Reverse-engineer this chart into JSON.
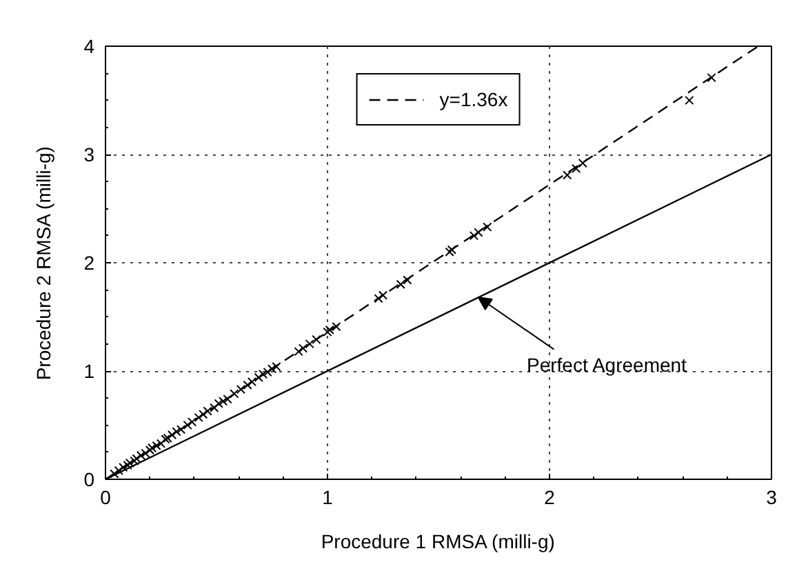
{
  "chart_data": {
    "type": "scatter",
    "xlabel": "Procedure 1 RMSA (milli-g)",
    "ylabel": "Procedure 2 RMSA (milli-g)",
    "xlim": [
      0,
      3
    ],
    "ylim": [
      0,
      4
    ],
    "xticks": [
      0,
      1,
      2,
      3
    ],
    "yticks": [
      0,
      1,
      2,
      3,
      4
    ],
    "grid": true,
    "legend": "top",
    "series": [
      {
        "type": "line",
        "name": "y=1.36x",
        "color": "#000000",
        "line_style": "dashed",
        "x": [
          0,
          2.94
        ],
        "values": [
          0,
          4
        ]
      },
      {
        "type": "line",
        "color": "#000000",
        "line_style": "solid",
        "x": [
          0,
          3
        ],
        "values": [
          0,
          3
        ]
      },
      {
        "color": "#000000",
        "marker": "cross",
        "x": [
          0.04,
          0.06,
          0.08,
          0.1,
          0.11,
          0.13,
          0.14,
          0.16,
          0.18,
          0.2,
          0.21,
          0.23,
          0.25,
          0.27,
          0.28,
          0.3,
          0.32,
          0.34,
          0.37,
          0.39,
          0.42,
          0.44,
          0.46,
          0.49,
          0.51,
          0.53,
          0.55,
          0.58,
          0.61,
          0.64,
          0.66,
          0.69,
          0.71,
          0.73,
          0.75,
          0.77,
          0.87,
          0.89,
          0.92,
          0.95,
          1.0,
          1.01,
          1.04,
          1.23,
          1.25,
          1.33,
          1.36,
          1.55,
          1.56,
          1.66,
          1.68,
          1.72,
          2.08,
          2.12,
          2.15,
          2.63,
          2.73
        ],
        "values": [
          0.05,
          0.08,
          0.11,
          0.13,
          0.15,
          0.17,
          0.19,
          0.22,
          0.24,
          0.27,
          0.29,
          0.31,
          0.33,
          0.37,
          0.38,
          0.41,
          0.44,
          0.46,
          0.5,
          0.53,
          0.57,
          0.6,
          0.63,
          0.66,
          0.7,
          0.72,
          0.74,
          0.79,
          0.83,
          0.87,
          0.9,
          0.94,
          0.97,
          0.99,
          1.02,
          1.04,
          1.18,
          1.21,
          1.25,
          1.29,
          1.36,
          1.38,
          1.41,
          1.67,
          1.7,
          1.8,
          1.84,
          2.1,
          2.12,
          2.25,
          2.28,
          2.33,
          2.81,
          2.87,
          2.92,
          3.5,
          3.71
        ]
      }
    ],
    "annotations": [
      {
        "text": "Perfect Agreement",
        "x": 1.68,
        "y": 1.68
      }
    ]
  }
}
